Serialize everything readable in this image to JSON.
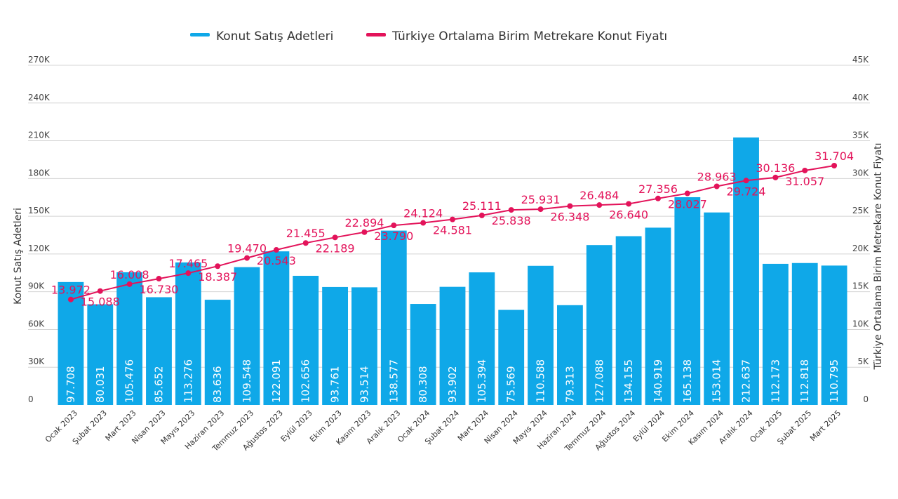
{
  "chart_data": {
    "type": "bar",
    "title": "",
    "legend": [
      {
        "name": "Konut Satış Adetleri",
        "color": "#0fa8e8"
      },
      {
        "name": "Türkiye Ortalama Birim Metrekare Konut Fiyatı",
        "color": "#e3135a"
      }
    ],
    "ylabel_left": "Konut Satış Adetleri",
    "ylabel_right": "Türkiye Ortalama Birim Metrekare Konut Fiyatı",
    "ylim_left": [
      0,
      270000
    ],
    "ylim_right": [
      0,
      45000
    ],
    "yticks_left": [
      "0",
      "30K",
      "60K",
      "90K",
      "120K",
      "150K",
      "180K",
      "210K",
      "240K",
      "270K"
    ],
    "yticks_right": [
      "0",
      "5K",
      "10K",
      "15K",
      "20K",
      "25K",
      "30K",
      "35K",
      "40K",
      "45K"
    ],
    "categories": [
      "Ocak 2023",
      "Şubat 2023",
      "Mart 2023",
      "Nisan 2023",
      "Mayıs 2023",
      "Haziran 2023",
      "Temmuz 2023",
      "Ağustos 2023",
      "Eylül 2023",
      "Ekim 2023",
      "Kasım 2023",
      "Aralık 2023",
      "Ocak 2024",
      "Şubat 2024",
      "Mart 2024",
      "Nisan 2024",
      "Mayıs 2024",
      "Haziran 2024",
      "Temmuz 2024",
      "Ağustos 2024",
      "Eylül 2024",
      "Ekim 2024",
      "Kasım 2024",
      "Aralık 2024",
      "Ocak 2025",
      "Şubat 2025",
      "Mart 2025"
    ],
    "series": [
      {
        "name": "Konut Satış Adetleri",
        "type": "bar",
        "axis": "left",
        "values": [
          97708,
          80031,
          105476,
          85652,
          113276,
          83636,
          109548,
          122091,
          102656,
          93761,
          93514,
          138577,
          80308,
          93902,
          105394,
          75569,
          110588,
          79313,
          127088,
          134155,
          140919,
          165138,
          153014,
          212637,
          112173,
          112818,
          110795
        ],
        "labels": [
          "97.708",
          "80.031",
          "105.476",
          "85.652",
          "113.276",
          "83.636",
          "109.548",
          "122.091",
          "102.656",
          "93.761",
          "93.514",
          "138.577",
          "80.308",
          "93.902",
          "105.394",
          "75.569",
          "110.588",
          "79.313",
          "127.088",
          "134.155",
          "140.919",
          "165.138",
          "153.014",
          "212.637",
          "112.173",
          "112.818",
          "110.795"
        ]
      },
      {
        "name": "Türkiye Ortalama Birim Metrekare Konut Fiyatı",
        "type": "line",
        "axis": "right",
        "values": [
          13972,
          15088,
          16008,
          16730,
          17465,
          18387,
          19470,
          20543,
          21455,
          22189,
          22894,
          23790,
          24124,
          24581,
          25111,
          25838,
          25931,
          26348,
          26484,
          26640,
          27356,
          28027,
          28963,
          29724,
          30136,
          31057,
          31704
        ],
        "labels": [
          "13.972",
          "15.088",
          "16.008",
          "16.730",
          "17.465",
          "18.387",
          "19.470",
          "20.543",
          "21.455",
          "22.189",
          "22.894",
          "23.790",
          "24.124",
          "24.581",
          "25.111",
          "25.838",
          "25.931",
          "26.348",
          "26.484",
          "26.640",
          "27.356",
          "28.027",
          "28.963",
          "29.724",
          "30.136",
          "31.057",
          "31.704"
        ]
      }
    ]
  }
}
